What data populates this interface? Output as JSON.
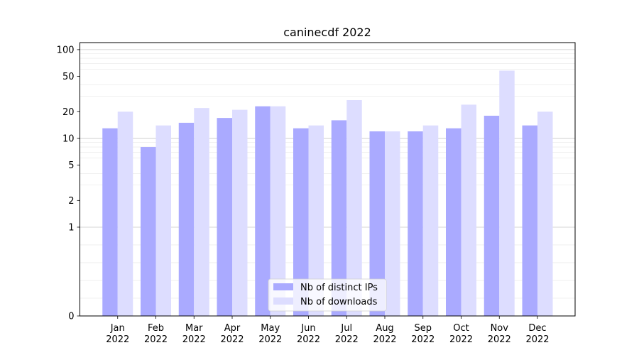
{
  "chart_data": {
    "type": "bar",
    "title": "caninecdf 2022",
    "xlabel": "",
    "ylabel": "",
    "yscale": "symlog",
    "ylim": [
      0,
      120
    ],
    "yticks": [
      0,
      1,
      2,
      5,
      10,
      20,
      50,
      100
    ],
    "categories": [
      {
        "month": "Jan",
        "year": "2022"
      },
      {
        "month": "Feb",
        "year": "2022"
      },
      {
        "month": "Mar",
        "year": "2022"
      },
      {
        "month": "Apr",
        "year": "2022"
      },
      {
        "month": "May",
        "year": "2022"
      },
      {
        "month": "Jun",
        "year": "2022"
      },
      {
        "month": "Jul",
        "year": "2022"
      },
      {
        "month": "Aug",
        "year": "2022"
      },
      {
        "month": "Sep",
        "year": "2022"
      },
      {
        "month": "Oct",
        "year": "2022"
      },
      {
        "month": "Nov",
        "year": "2022"
      },
      {
        "month": "Dec",
        "year": "2022"
      }
    ],
    "series": [
      {
        "name": "Nb of distinct IPs",
        "color": "#aaaaff",
        "values": [
          13,
          8,
          15,
          17,
          23,
          13,
          16,
          12,
          12,
          13,
          18,
          14
        ]
      },
      {
        "name": "Nb of downloads",
        "color": "#ddddff",
        "values": [
          20,
          14,
          22,
          21,
          23,
          14,
          27,
          12,
          14,
          24,
          58,
          20
        ]
      }
    ],
    "legend": {
      "position": "lower center"
    },
    "grid": true
  }
}
